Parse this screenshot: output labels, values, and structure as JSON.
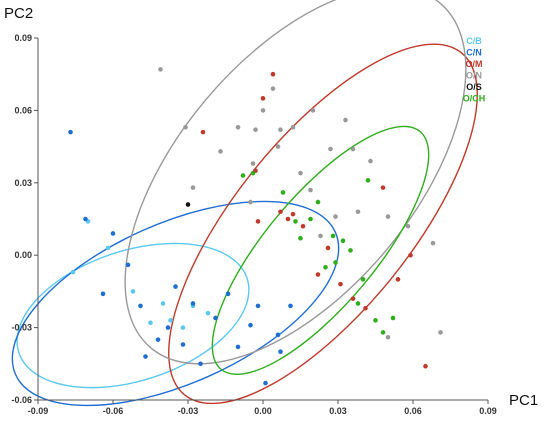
{
  "chart_data": {
    "type": "scatter",
    "xlabel": "PC1",
    "ylabel": "PC2",
    "xlim": [
      -0.09,
      0.09
    ],
    "ylim": [
      -0.06,
      0.09
    ],
    "x_ticks": [
      "-0.09",
      "-0.06",
      "-0.03",
      "0.00",
      "0.03",
      "0.06",
      "0.09"
    ],
    "y_ticks": [
      "0.09",
      "0.06",
      "0.03",
      "0.00",
      "-0.03",
      "-0.06"
    ],
    "legend_position": "top-right",
    "grid": false,
    "series": [
      {
        "name": "C/B",
        "color": "#5bc8f0",
        "points": [
          [
            -0.076,
            -0.007
          ],
          [
            -0.07,
            0.014
          ],
          [
            -0.062,
            0.003
          ],
          [
            -0.052,
            -0.015
          ],
          [
            -0.045,
            -0.028
          ],
          [
            -0.04,
            -0.02
          ],
          [
            -0.037,
            -0.027
          ],
          [
            -0.032,
            -0.03
          ],
          [
            -0.028,
            -0.021
          ],
          [
            -0.022,
            -0.024
          ]
        ],
        "ellipse": {
          "cx": -0.052,
          "cy": -0.025,
          "rx": 0.048,
          "ry": 0.026,
          "angle_deg": -18
        }
      },
      {
        "name": "C/N",
        "color": "#1f6ed4",
        "points": [
          [
            -0.077,
            0.051
          ],
          [
            -0.071,
            0.015
          ],
          [
            -0.064,
            -0.016
          ],
          [
            -0.06,
            0.009
          ],
          [
            -0.054,
            -0.004
          ],
          [
            -0.049,
            -0.021
          ],
          [
            -0.047,
            -0.042
          ],
          [
            -0.042,
            -0.035
          ],
          [
            -0.038,
            -0.03
          ],
          [
            -0.035,
            -0.013
          ],
          [
            -0.032,
            -0.037
          ],
          [
            -0.028,
            -0.02
          ],
          [
            -0.025,
            -0.045
          ],
          [
            -0.019,
            -0.026
          ],
          [
            -0.014,
            -0.016
          ],
          [
            -0.01,
            -0.038
          ],
          [
            -0.005,
            -0.029
          ],
          [
            -0.002,
            -0.021
          ],
          [
            0.001,
            -0.053
          ],
          [
            0.006,
            -0.033
          ],
          [
            0.011,
            -0.021
          ],
          [
            0.007,
            -0.04
          ]
        ],
        "ellipse": {
          "cx": -0.035,
          "cy": -0.02,
          "rx": 0.07,
          "ry": 0.032,
          "angle_deg": -24
        }
      },
      {
        "name": "O/M",
        "color": "#c0392b",
        "points": [
          [
            -0.024,
            0.051
          ],
          [
            0.0,
            0.065
          ],
          [
            0.004,
            0.075
          ],
          [
            -0.003,
            0.035
          ],
          [
            0.007,
            0.018
          ],
          [
            0.012,
            0.017
          ],
          [
            0.016,
            0.012
          ],
          [
            0.022,
            -0.008
          ],
          [
            0.026,
            0.003
          ],
          [
            0.031,
            -0.012
          ],
          [
            0.036,
            -0.018
          ],
          [
            0.041,
            -0.022
          ],
          [
            0.048,
            0.028
          ],
          [
            0.054,
            -0.01
          ],
          [
            0.059,
            0.0
          ],
          [
            0.065,
            -0.046
          ],
          [
            -0.002,
            0.014
          ],
          [
            0.01,
            0.015
          ]
        ],
        "ellipse": {
          "cx": 0.024,
          "cy": 0.013,
          "rx": 0.088,
          "ry": 0.035,
          "angle_deg": -51
        }
      },
      {
        "name": "O/N",
        "color": "#999999",
        "points": [
          [
            -0.041,
            0.077
          ],
          [
            -0.031,
            0.053
          ],
          [
            -0.028,
            0.028
          ],
          [
            -0.017,
            0.043
          ],
          [
            -0.01,
            0.053
          ],
          [
            -0.003,
            0.052
          ],
          [
            -0.004,
            0.038
          ],
          [
            0.0,
            0.06
          ],
          [
            0.004,
            0.069
          ],
          [
            0.007,
            0.052
          ],
          [
            0.012,
            0.053
          ],
          [
            0.015,
            0.034
          ],
          [
            0.019,
            0.027
          ],
          [
            0.023,
            0.008
          ],
          [
            0.027,
            0.044
          ],
          [
            0.029,
            0.016
          ],
          [
            0.033,
            0.056
          ],
          [
            0.036,
            0.044
          ],
          [
            0.038,
            0.018
          ],
          [
            0.043,
            0.039
          ],
          [
            0.05,
            0.016
          ],
          [
            0.058,
            0.012
          ],
          [
            0.068,
            0.005
          ],
          [
            0.071,
            -0.032
          ],
          [
            0.05,
            -0.034
          ],
          [
            -0.005,
            0.022
          ],
          [
            0.006,
            0.045
          ],
          [
            0.02,
            0.06
          ]
        ],
        "ellipse": {
          "cx": 0.013,
          "cy": 0.033,
          "rx": 0.09,
          "ry": 0.047,
          "angle_deg": -50
        }
      },
      {
        "name": "O/S",
        "color": "#111111",
        "points": [
          [
            -0.03,
            0.021
          ]
        ],
        "ellipse": null
      },
      {
        "name": "O/CH",
        "color": "#2eae1b",
        "points": [
          [
            -0.008,
            0.033
          ],
          [
            -0.004,
            0.034
          ],
          [
            0.008,
            0.026
          ],
          [
            0.015,
            0.007
          ],
          [
            0.019,
            0.015
          ],
          [
            0.025,
            -0.005
          ],
          [
            0.028,
            0.008
          ],
          [
            0.032,
            0.006
          ],
          [
            0.035,
            0.002
          ],
          [
            0.038,
            -0.02
          ],
          [
            0.042,
            0.031
          ],
          [
            0.045,
            -0.027
          ],
          [
            0.048,
            -0.032
          ],
          [
            0.052,
            -0.026
          ],
          [
            0.029,
            -0.003
          ],
          [
            0.022,
            0.022
          ],
          [
            0.04,
            -0.01
          ],
          [
            0.013,
            0.014
          ]
        ],
        "ellipse": {
          "cx": 0.023,
          "cy": 0.002,
          "rx": 0.062,
          "ry": 0.022,
          "angle_deg": -50
        }
      }
    ]
  }
}
